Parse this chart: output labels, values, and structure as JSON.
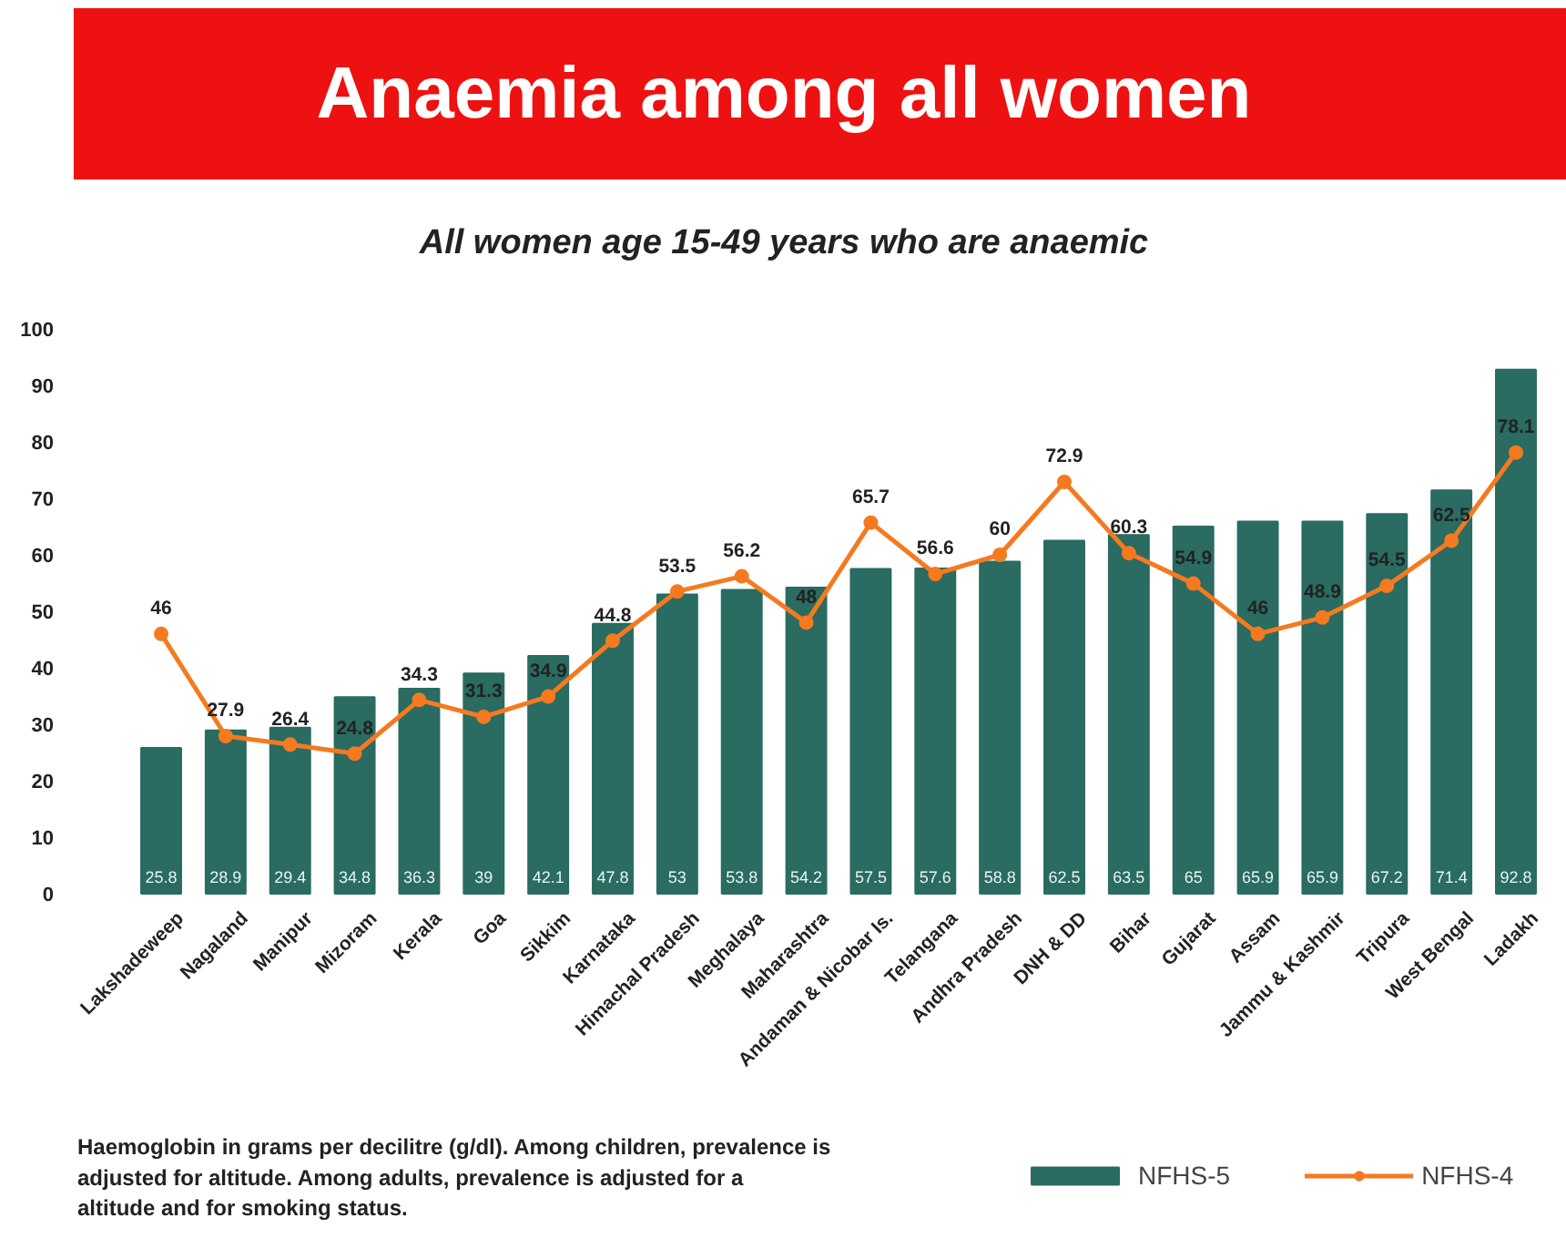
{
  "chart_data": {
    "type": "bar",
    "title": "Anaemia among all women",
    "subtitle": "All women age 15-49 years who are anaemic",
    "categories": [
      "Lakshadeweep",
      "Nagaland",
      "Manipur",
      "Mizoram",
      "Kerala",
      "Goa",
      "Sikkim",
      "Karnataka",
      "Himachal Pradesh",
      "Meghalaya",
      "Maharashtra",
      "Andaman & Nicobar Is.",
      "Telangana",
      "Andhra Pradesh",
      "DNH & DD",
      "Bihar",
      "Gujarat",
      "Assam",
      "Jammu & Kashmir",
      "Tripura",
      "West Bengal",
      "Ladakh"
    ],
    "series": [
      {
        "name": "NFHS-5",
        "color": "#2a6b62",
        "values": [
          25.8,
          28.9,
          29.4,
          34.8,
          36.3,
          39,
          42.1,
          47.8,
          53,
          53.8,
          54.2,
          57.5,
          57.6,
          58.8,
          62.5,
          63.5,
          65,
          65.9,
          65.9,
          67.2,
          71.4,
          92.8
        ]
      },
      {
        "name": "NFHS-4",
        "type": "line",
        "color": "#f57a1f",
        "values": [
          46,
          27.9,
          26.4,
          24.8,
          34.3,
          31.3,
          34.9,
          44.8,
          53.5,
          56.2,
          48,
          65.7,
          56.6,
          60,
          72.9,
          60.3,
          54.9,
          46,
          48.9,
          54.5,
          62.5,
          78.1
        ]
      }
    ],
    "ylim": [
      0,
      100
    ],
    "yticks": [
      0,
      10,
      20,
      30,
      40,
      50,
      60,
      70,
      80,
      90,
      100
    ],
    "data_labels": true,
    "grid": false,
    "legend": "bottom right",
    "marker": "circle",
    "line_style": "solid",
    "annotations": [
      "Haemoglobin in grams per decilitre (g/dl). Among children, prevalence is adjusted for altitude. Among adults, prevalence is adjusted for a altitude and for smoking status."
    ]
  }
}
